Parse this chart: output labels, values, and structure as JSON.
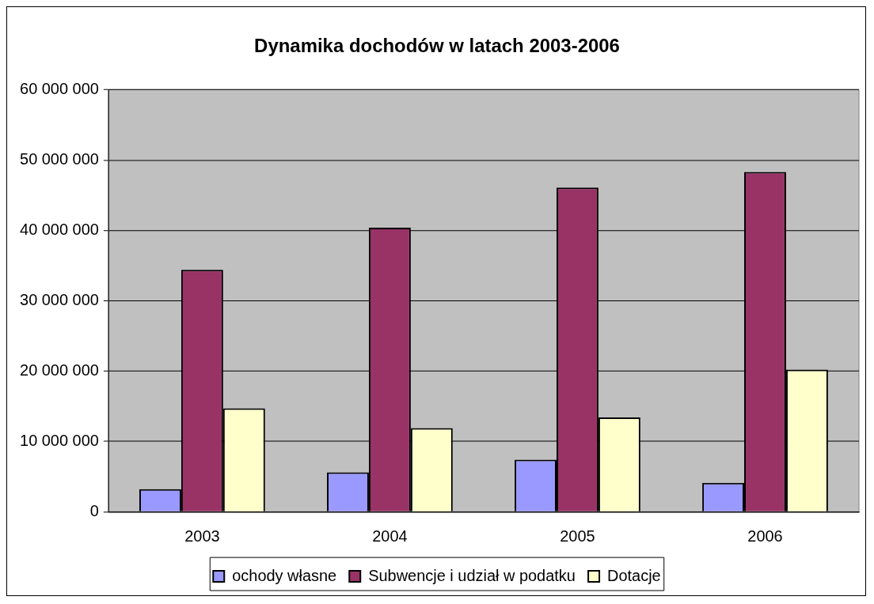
{
  "chart_data": {
    "type": "bar",
    "title": "Dynamika dochodów w latach 2003-2006",
    "categories": [
      "2003",
      "2004",
      "2005",
      "2006"
    ],
    "series": [
      {
        "name": "ochody własne",
        "color": "#9999ff",
        "values": [
          3200000,
          5600000,
          7400000,
          4100000
        ]
      },
      {
        "name": "Subwencje i udział w podatku",
        "color": "#993366",
        "values": [
          34400000,
          40400000,
          46100000,
          48300000
        ]
      },
      {
        "name": "Dotacje",
        "color": "#ffffcc",
        "values": [
          14700000,
          11900000,
          13400000,
          20200000
        ]
      }
    ],
    "ylim": [
      0,
      60000000
    ],
    "yticks": [
      {
        "value": 0,
        "label": "0"
      },
      {
        "value": 10000000,
        "label": "10 000 000"
      },
      {
        "value": 20000000,
        "label": "20 000 000"
      },
      {
        "value": 30000000,
        "label": "30 000 000"
      },
      {
        "value": 40000000,
        "label": "40 000 000"
      },
      {
        "value": 50000000,
        "label": "50 000 000"
      },
      {
        "value": 60000000,
        "label": "60 000 000"
      }
    ],
    "grid": "y",
    "legend": "bottom"
  }
}
